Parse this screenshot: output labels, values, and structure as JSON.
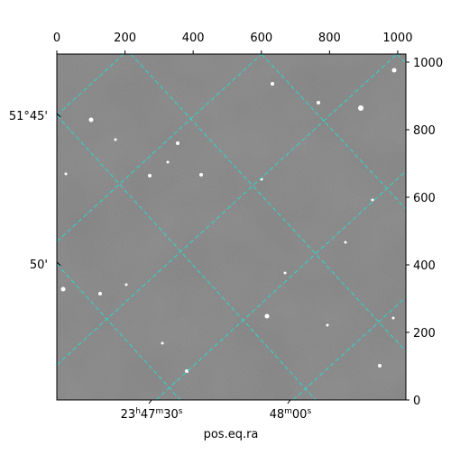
{
  "chart_data": {
    "type": "image",
    "xlabel": "pos.eq.ra",
    "xlim": [
      0,
      1024
    ],
    "ylim": [
      0,
      1024
    ],
    "xticks": [
      0,
      200,
      400,
      600,
      800,
      1000
    ],
    "yticks": [
      0,
      200,
      400,
      600,
      800,
      1000
    ],
    "ra_ticks": [
      {
        "value": 278,
        "label": "23h47m30s"
      },
      {
        "value": 685,
        "label": "48m00s"
      }
    ],
    "dec_ticks": [
      {
        "value": 843,
        "label": "51°45'"
      },
      {
        "value": 403,
        "label": "50'"
      }
    ],
    "grid": true
  }
}
